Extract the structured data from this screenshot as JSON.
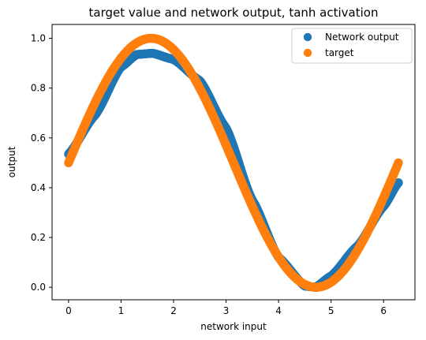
{
  "chart_data": {
    "type": "scatter",
    "title": "target value and network output, tanh activation",
    "xlabel": "network input",
    "ylabel": "output",
    "xlim": [
      -0.3142,
      6.5974
    ],
    "ylim": [
      -0.0502,
      1.0557
    ],
    "xticks": [
      0,
      1,
      2,
      3,
      4,
      5,
      6
    ],
    "yticks": [
      0.0,
      0.2,
      0.4,
      0.6,
      0.8,
      1.0
    ],
    "xtick_labels": [
      "0",
      "1",
      "2",
      "3",
      "4",
      "5",
      "6"
    ],
    "ytick_labels": [
      "0.0",
      "0.2",
      "0.4",
      "0.6",
      "0.8",
      "1.0"
    ],
    "grid": false,
    "legend_position": "top-right",
    "x_range": [
      0,
      6.2832
    ],
    "series": [
      {
        "name": "Network output",
        "color": "#1f77b4",
        "points": [
          [
            0.0,
            0.535
          ],
          [
            0.5,
            0.69
          ],
          [
            1.0,
            0.885
          ],
          [
            1.3,
            0.935
          ],
          [
            1.6,
            0.94
          ],
          [
            2.0,
            0.915
          ],
          [
            2.5,
            0.83
          ],
          [
            3.0,
            0.64
          ],
          [
            3.5,
            0.35
          ],
          [
            4.0,
            0.12
          ],
          [
            4.5,
            0.005
          ],
          [
            4.7,
            0.0
          ],
          [
            5.0,
            0.045
          ],
          [
            5.5,
            0.165
          ],
          [
            6.0,
            0.325
          ],
          [
            6.283,
            0.42
          ]
        ]
      },
      {
        "name": "target",
        "color": "#ff7f0e",
        "formula": "0.5 + 0.5*sin(x)"
      }
    ]
  }
}
